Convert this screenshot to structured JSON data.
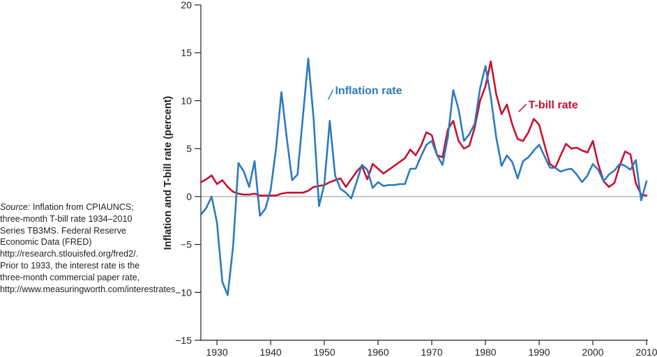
{
  "source_note": {
    "label": "Source:",
    "text": " Inflation from CPIAUNCS; three-month T-bill rate 1934–2010 Series TB3MS. Federal Reserve Economic Data (FRED) http://research.stlouisfed.org/fred2/. Prior to 1933, the interest rate is the three-month commercial paper rate, http://www.measuringworth.com/interestrates"
  },
  "colors": {
    "inflation": "#2a7ac0",
    "tbill": "#c8102e",
    "axis": "#231f20",
    "zero_line": "#a7a9ac"
  },
  "chart_data": {
    "type": "line",
    "title": "",
    "xlabel": "",
    "ylabel": "Inflation and T-bill rate (percent)",
    "xlim": [
      1927,
      2010
    ],
    "ylim": [
      -15,
      20
    ],
    "x_ticks": [
      1930,
      1940,
      1950,
      1960,
      1970,
      1980,
      1990,
      2000,
      2010
    ],
    "y_ticks": [
      -15,
      -10,
      -5,
      0,
      5,
      10,
      15,
      20
    ],
    "grid": false,
    "zero_line": true,
    "series": [
      {
        "name": "Inflation rate",
        "color": "#2a7ac0",
        "label_position": [
          1952,
          10.7
        ],
        "points": [
          [
            1927,
            -1.9
          ],
          [
            1928,
            -1.2
          ],
          [
            1929,
            0.0
          ],
          [
            1930,
            -2.7
          ],
          [
            1931,
            -8.9
          ],
          [
            1932,
            -10.3
          ],
          [
            1933,
            -5.2
          ],
          [
            1934,
            3.5
          ],
          [
            1935,
            2.6
          ],
          [
            1936,
            1.0
          ],
          [
            1937,
            3.7
          ],
          [
            1938,
            -2.0
          ],
          [
            1939,
            -1.3
          ],
          [
            1940,
            0.7
          ],
          [
            1941,
            5.0
          ],
          [
            1942,
            10.9
          ],
          [
            1943,
            6.1
          ],
          [
            1944,
            1.7
          ],
          [
            1945,
            2.3
          ],
          [
            1946,
            8.3
          ],
          [
            1947,
            14.4
          ],
          [
            1948,
            8.1
          ],
          [
            1949,
            -1.0
          ],
          [
            1950,
            1.3
          ],
          [
            1951,
            7.9
          ],
          [
            1952,
            2.2
          ],
          [
            1953,
            0.8
          ],
          [
            1954,
            0.4
          ],
          [
            1955,
            -0.2
          ],
          [
            1956,
            1.5
          ],
          [
            1957,
            3.3
          ],
          [
            1958,
            2.8
          ],
          [
            1959,
            0.9
          ],
          [
            1960,
            1.5
          ],
          [
            1961,
            1.1
          ],
          [
            1962,
            1.2
          ],
          [
            1963,
            1.2
          ],
          [
            1964,
            1.3
          ],
          [
            1965,
            1.3
          ],
          [
            1966,
            2.9
          ],
          [
            1967,
            2.9
          ],
          [
            1968,
            4.2
          ],
          [
            1969,
            5.4
          ],
          [
            1970,
            5.8
          ],
          [
            1971,
            4.3
          ],
          [
            1972,
            3.3
          ],
          [
            1973,
            6.2
          ],
          [
            1974,
            11.1
          ],
          [
            1975,
            9.1
          ],
          [
            1976,
            5.8
          ],
          [
            1977,
            6.5
          ],
          [
            1978,
            7.6
          ],
          [
            1979,
            11.3
          ],
          [
            1980,
            13.6
          ],
          [
            1981,
            10.4
          ],
          [
            1982,
            6.2
          ],
          [
            1983,
            3.2
          ],
          [
            1984,
            4.3
          ],
          [
            1985,
            3.6
          ],
          [
            1986,
            1.9
          ],
          [
            1987,
            3.7
          ],
          [
            1988,
            4.1
          ],
          [
            1989,
            4.8
          ],
          [
            1990,
            5.4
          ],
          [
            1991,
            4.2
          ],
          [
            1992,
            3.0
          ],
          [
            1993,
            3.0
          ],
          [
            1994,
            2.6
          ],
          [
            1995,
            2.8
          ],
          [
            1996,
            2.9
          ],
          [
            1997,
            2.3
          ],
          [
            1998,
            1.5
          ],
          [
            1999,
            2.2
          ],
          [
            2000,
            3.4
          ],
          [
            2001,
            2.8
          ],
          [
            2002,
            1.6
          ],
          [
            2003,
            2.3
          ],
          [
            2004,
            2.7
          ],
          [
            2005,
            3.4
          ],
          [
            2006,
            3.2
          ],
          [
            2007,
            2.8
          ],
          [
            2008,
            3.8
          ],
          [
            2009,
            -0.4
          ],
          [
            2010,
            1.6
          ]
        ]
      },
      {
        "name": "T-bill rate",
        "color": "#c8102e",
        "label_position": [
          1988,
          9.2
        ],
        "points": [
          [
            1927,
            1.5
          ],
          [
            1928,
            1.8
          ],
          [
            1929,
            2.2
          ],
          [
            1930,
            1.3
          ],
          [
            1931,
            1.7
          ],
          [
            1932,
            1.0
          ],
          [
            1933,
            0.5
          ],
          [
            1934,
            0.3
          ],
          [
            1935,
            0.2
          ],
          [
            1936,
            0.2
          ],
          [
            1937,
            0.3
          ],
          [
            1938,
            0.1
          ],
          [
            1939,
            0.1
          ],
          [
            1940,
            0.1
          ],
          [
            1941,
            0.1
          ],
          [
            1942,
            0.3
          ],
          [
            1943,
            0.4
          ],
          [
            1944,
            0.4
          ],
          [
            1945,
            0.4
          ],
          [
            1946,
            0.4
          ],
          [
            1947,
            0.6
          ],
          [
            1948,
            1.0
          ],
          [
            1949,
            1.1
          ],
          [
            1950,
            1.2
          ],
          [
            1951,
            1.5
          ],
          [
            1952,
            1.7
          ],
          [
            1953,
            1.9
          ],
          [
            1954,
            1.0
          ],
          [
            1955,
            1.8
          ],
          [
            1956,
            2.6
          ],
          [
            1957,
            3.2
          ],
          [
            1958,
            1.8
          ],
          [
            1959,
            3.4
          ],
          [
            1960,
            2.9
          ],
          [
            1961,
            2.4
          ],
          [
            1962,
            2.8
          ],
          [
            1963,
            3.2
          ],
          [
            1964,
            3.6
          ],
          [
            1965,
            4.0
          ],
          [
            1966,
            4.9
          ],
          [
            1967,
            4.3
          ],
          [
            1968,
            5.3
          ],
          [
            1969,
            6.7
          ],
          [
            1970,
            6.4
          ],
          [
            1971,
            4.3
          ],
          [
            1972,
            4.1
          ],
          [
            1973,
            7.0
          ],
          [
            1974,
            7.9
          ],
          [
            1975,
            5.8
          ],
          [
            1976,
            5.0
          ],
          [
            1977,
            5.3
          ],
          [
            1978,
            7.2
          ],
          [
            1979,
            10.0
          ],
          [
            1980,
            11.5
          ],
          [
            1981,
            14.1
          ],
          [
            1982,
            10.7
          ],
          [
            1983,
            8.6
          ],
          [
            1984,
            9.6
          ],
          [
            1985,
            7.5
          ],
          [
            1986,
            6.0
          ],
          [
            1987,
            5.8
          ],
          [
            1988,
            6.7
          ],
          [
            1989,
            8.1
          ],
          [
            1990,
            7.5
          ],
          [
            1991,
            5.4
          ],
          [
            1992,
            3.4
          ],
          [
            1993,
            3.0
          ],
          [
            1994,
            4.3
          ],
          [
            1995,
            5.5
          ],
          [
            1996,
            5.0
          ],
          [
            1997,
            5.1
          ],
          [
            1998,
            4.8
          ],
          [
            1999,
            4.6
          ],
          [
            2000,
            5.8
          ],
          [
            2001,
            3.4
          ],
          [
            2002,
            1.6
          ],
          [
            2003,
            1.0
          ],
          [
            2004,
            1.4
          ],
          [
            2005,
            3.2
          ],
          [
            2006,
            4.7
          ],
          [
            2007,
            4.4
          ],
          [
            2008,
            1.4
          ],
          [
            2009,
            0.2
          ],
          [
            2010,
            0.1
          ]
        ]
      }
    ]
  }
}
